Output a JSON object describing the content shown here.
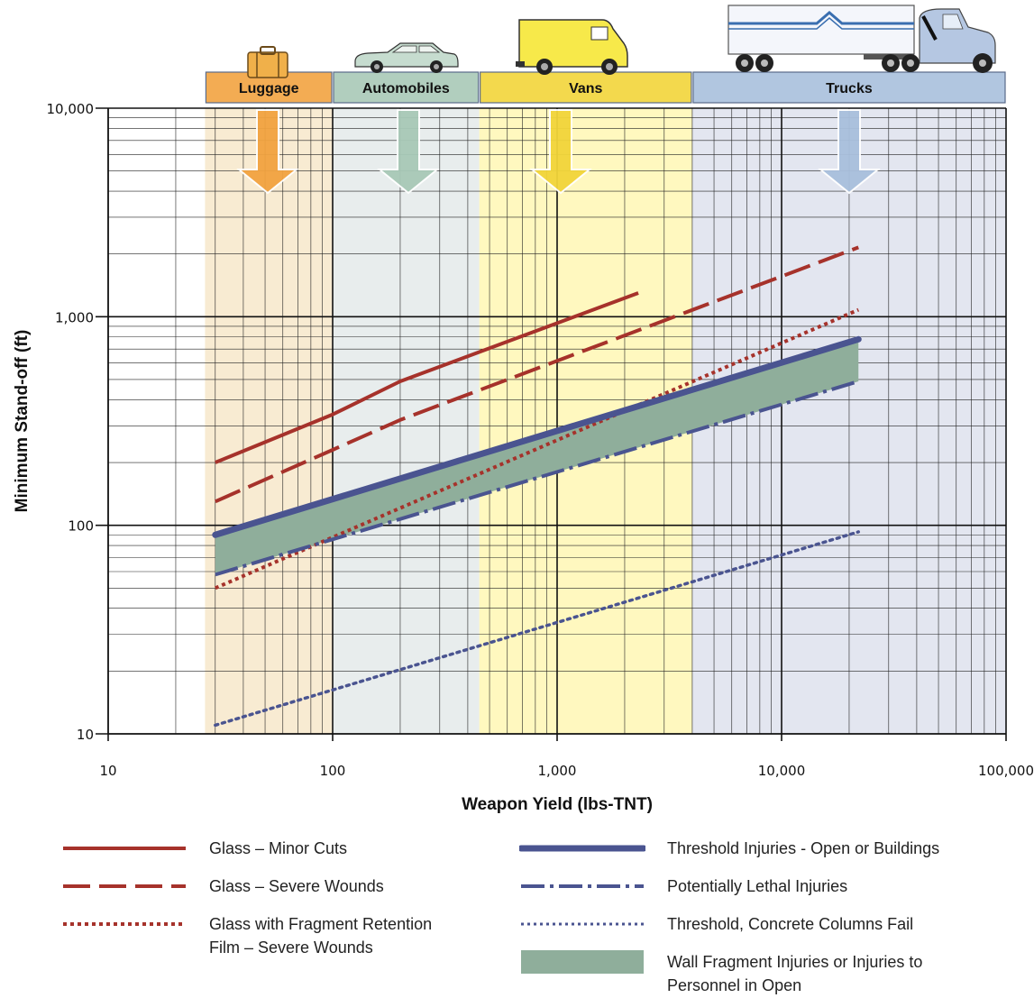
{
  "chart_data": {
    "type": "line",
    "xlabel": "Weapon Yield (lbs-TNT)",
    "ylabel": "Minimum Stand-off (ft)",
    "xscale": "log",
    "yscale": "log",
    "xlim": [
      10,
      100000
    ],
    "ylim": [
      10,
      10000
    ],
    "x_ticks": [
      10,
      100,
      1000,
      10000,
      100000
    ],
    "x_tick_labels": [
      "10",
      "100",
      "1,000",
      "10,000",
      "100,000"
    ],
    "y_ticks": [
      10,
      100,
      1000,
      10000
    ],
    "y_tick_labels": [
      "10",
      "100",
      "1,000",
      "10,000"
    ],
    "grid": true,
    "categories": [
      {
        "name": "Luggage",
        "x_range": [
          27,
          100
        ],
        "color": "#f2a340",
        "band_color": "#f8ebd2",
        "icon": "suitcase-icon"
      },
      {
        "name": "Automobiles",
        "x_range": [
          100,
          450
        ],
        "color": "#a8c9b7",
        "band_color": "#e8eded",
        "icon": "car-icon"
      },
      {
        "name": "Vans",
        "x_range": [
          450,
          4000
        ],
        "color": "#f2d53a",
        "band_color": "#fff8bf",
        "icon": "van-icon"
      },
      {
        "name": "Trucks",
        "x_range": [
          4000,
          100000
        ],
        "color": "#a9c0dd",
        "band_color": "#e3e6f0",
        "icon": "truck-icon"
      }
    ],
    "series": [
      {
        "name": "Glass – Minor Cuts",
        "style": "solid",
        "color": "#a6322b",
        "points": [
          [
            30,
            200
          ],
          [
            100,
            340
          ],
          [
            200,
            490
          ],
          [
            2300,
            1300
          ]
        ]
      },
      {
        "name": "Glass – Severe Wounds",
        "style": "dashed",
        "color": "#a6322b",
        "points": [
          [
            30,
            130
          ],
          [
            100,
            230
          ],
          [
            200,
            320
          ],
          [
            22000,
            2150
          ]
        ]
      },
      {
        "name": "Glass with Fragment Retention Film – Severe Wounds",
        "style": "dotted",
        "color": "#a6322b",
        "points": [
          [
            30,
            50
          ],
          [
            22000,
            1080
          ]
        ]
      },
      {
        "name": "Threshold Injuries - Open or Buildings",
        "style": "thick",
        "color": "#4a5490",
        "points": [
          [
            30,
            90
          ],
          [
            22000,
            780
          ]
        ]
      },
      {
        "name": "Potentially Lethal Injuries",
        "style": "dashdot",
        "color": "#4a5490",
        "points": [
          [
            30,
            58
          ],
          [
            22000,
            490
          ]
        ]
      },
      {
        "name": "Threshold, Concrete Columns Fail",
        "style": "fine-dotted",
        "color": "#4a5490",
        "points": [
          [
            30,
            11
          ],
          [
            22000,
            93
          ]
        ]
      }
    ],
    "band": {
      "name": "Wall Fragment Injuries or Injuries to Personnel in Open",
      "color": "#8fae9b",
      "upper": [
        [
          30,
          90
        ],
        [
          22000,
          780
        ]
      ],
      "lower": [
        [
          30,
          58
        ],
        [
          22000,
          490
        ]
      ]
    }
  },
  "legend": {
    "minor_cuts": "Glass – Minor Cuts",
    "severe_wounds": "Glass – Severe Wounds",
    "film_line1": "Glass with Fragment Retention",
    "film_line2": "Film – Severe Wounds",
    "threshold": "Threshold Injuries - Open or Buildings",
    "lethal": "Potentially Lethal Injuries",
    "columns": "Threshold, Concrete Columns Fail",
    "wall_line1": "Wall Fragment Injuries or Injuries to",
    "wall_line2": "Personnel in Open"
  }
}
